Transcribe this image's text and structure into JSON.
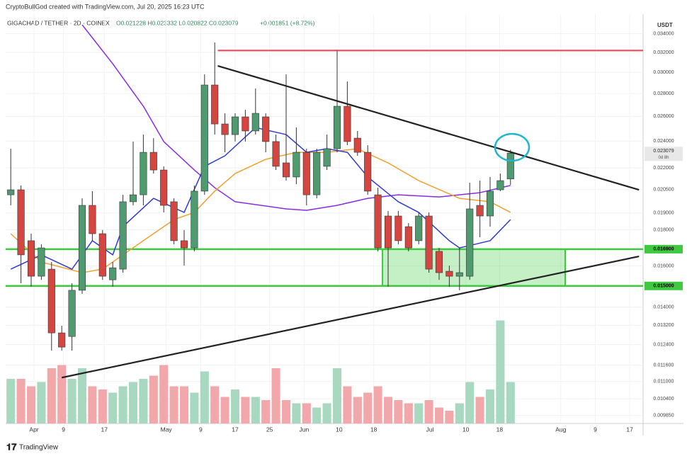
{
  "header": {
    "credit": "CryptoBullGod created with TradingView.com, Jul 20, 2025 16:23 UTC",
    "symbol": "GIGACHAD / TETHER · 2D · COINEX",
    "ohlc": "O0.021228 H0.023332 L0.020822 C0.023079",
    "change": "+0.001851 (+8.72%)"
  },
  "footer": {
    "logo": "TradingView"
  },
  "chart_data": {
    "type": "candlestick",
    "y_axis_label": "USDT",
    "log_scale": true,
    "grid": true,
    "ylim": [
      0.0096,
      0.035
    ],
    "yticks": [
      {
        "value": 0.034,
        "label": "0.034000"
      },
      {
        "value": 0.032,
        "label": "0.032000"
      },
      {
        "value": 0.03,
        "label": "0.030000"
      },
      {
        "value": 0.028,
        "label": "0.028000"
      },
      {
        "value": 0.026,
        "label": "0.026000"
      },
      {
        "value": 0.024,
        "label": "0.024000"
      },
      {
        "value": 0.022,
        "label": "0.022000"
      },
      {
        "value": 0.0205,
        "label": "0.020500"
      },
      {
        "value": 0.019,
        "label": "0.019000"
      },
      {
        "value": 0.018,
        "label": "0.018000"
      },
      {
        "value": 0.016,
        "label": "0.016000"
      },
      {
        "value": 0.014,
        "label": "0.014000"
      },
      {
        "value": 0.0132,
        "label": "0.013200"
      },
      {
        "value": 0.0124,
        "label": "0.012400"
      },
      {
        "value": 0.0116,
        "label": "0.011600"
      },
      {
        "value": 0.011,
        "label": "0.011000"
      },
      {
        "value": 0.0104,
        "label": "0.010400"
      },
      {
        "value": 0.00985,
        "label": "0.009850"
      }
    ],
    "xlim": [
      -0.5,
      62
    ],
    "xticks": [
      {
        "value": 2.28,
        "label": "Apr"
      },
      {
        "value": 5.17,
        "label": "9"
      },
      {
        "value": 9.17,
        "label": "17"
      },
      {
        "value": 15.24,
        "label": "May"
      },
      {
        "value": 18.62,
        "label": "9"
      },
      {
        "value": 22,
        "label": "17"
      },
      {
        "value": 25.38,
        "label": "25"
      },
      {
        "value": 28.76,
        "label": "Jun"
      },
      {
        "value": 32.2,
        "label": "10"
      },
      {
        "value": 35.59,
        "label": "18"
      },
      {
        "value": 41.1,
        "label": "Jul"
      },
      {
        "value": 44.62,
        "label": "10"
      },
      {
        "value": 47.93,
        "label": "18"
      },
      {
        "value": 53.93,
        "label": "Aug"
      },
      {
        "value": 57.31,
        "label": "9"
      },
      {
        "value": 60.69,
        "label": "17"
      }
    ],
    "up_color": "#4f9a6e",
    "down_color": "#d4463f",
    "volume_up_color": "#a8d8c0",
    "volume_down_color": "#f2a7aa",
    "open": [
      0.02016,
      0.02049,
      0.01737,
      0.01548,
      0.01584,
      0.01288,
      0.01273,
      0.01479,
      0.01948,
      0.01777,
      0.0153,
      0.01584,
      0.01971,
      0.02016,
      0.02314,
      0.02185,
      0.01971,
      0.01737,
      0.01697,
      0.0204,
      0.02879,
      0.02537,
      0.02451,
      0.02596,
      0.0248,
      0.02596,
      0.02396,
      0.02236,
      0.02136,
      0.02314,
      0.02016,
      0.02211,
      0.02341,
      0.02687,
      0.02423,
      0.02314,
      0.02016,
      0.01882,
      0.01882,
      0.01818,
      0.01737,
      0.01882,
      0.01678,
      0.01573,
      0.01548,
      0.01548,
      0.01948,
      0.01882,
      0.02049,
      0.021228
    ],
    "high": [
      0.02341,
      0.02078,
      0.01777,
      0.01717,
      0.01621,
      0.01318,
      0.01513,
      0.01993,
      0.0204,
      0.01798,
      0.01621,
      0.02016,
      0.02396,
      0.02451,
      0.02423,
      0.02211,
      0.01993,
      0.01798,
      0.02078,
      0.0298,
      0.03305,
      0.02626,
      0.02626,
      0.02657,
      0.02846,
      0.02626,
      0.02451,
      0.0298,
      0.02508,
      0.02341,
      0.02341,
      0.02451,
      0.0323,
      0.02912,
      0.0248,
      0.02368,
      0.02063,
      0.01913,
      0.01913,
      0.01839,
      0.01904,
      0.01904,
      0.01697,
      0.01602,
      0.01697,
      0.02097,
      0.02111,
      0.02136,
      0.0216,
      0.023332
    ],
    "low": [
      0.01948,
      0.01513,
      0.01496,
      0.0153,
      0.01216,
      0.01216,
      0.01216,
      0.01462,
      0.01737,
      0.0153,
      0.01496,
      0.01566,
      0.01948,
      0.01948,
      0.0216,
      0.01904,
      0.01717,
      0.01602,
      0.01678,
      0.02016,
      0.02451,
      0.02314,
      0.02396,
      0.02396,
      0.02451,
      0.02314,
      0.02185,
      0.02111,
      0.02087,
      0.01948,
      0.01993,
      0.02185,
      0.02314,
      0.02368,
      0.02288,
      0.02016,
      0.01678,
      0.01496,
      0.01717,
      0.01678,
      0.01717,
      0.01566,
      0.0153,
      0.01496,
      0.01479,
      0.0153,
      0.01757,
      0.01818,
      0.0204,
      0.020822
    ],
    "close": [
      0.02049,
      0.01659,
      0.01548,
      0.01697,
      0.01288,
      0.0123,
      0.01479,
      0.01948,
      0.01777,
      0.01548,
      0.01591,
      0.01971,
      0.02016,
      0.02314,
      0.02185,
      0.01948,
      0.01737,
      0.01697,
      0.0204,
      0.02879,
      0.02537,
      0.02451,
      0.02596,
      0.0248,
      0.02626,
      0.02396,
      0.02211,
      0.02136,
      0.02314,
      0.02016,
      0.02314,
      0.02341,
      0.02687,
      0.02396,
      0.02314,
      0.0204,
      0.01697,
      0.01697,
      0.01737,
      0.01697,
      0.01882,
      0.01584,
      0.01566,
      0.01548,
      0.01566,
      0.01926,
      0.01882,
      0.0204,
      0.02111,
      0.023079
    ],
    "vlim": [
      0,
      100
    ],
    "volume": [
      42,
      42,
      35,
      39,
      52,
      55,
      42,
      52,
      35,
      32,
      29,
      35,
      39,
      42,
      45,
      55,
      35,
      35,
      29,
      49,
      35,
      25,
      32,
      25,
      25,
      22,
      52,
      22,
      19,
      19,
      15,
      19,
      52,
      35,
      25,
      29,
      35,
      25,
      22,
      19,
      19,
      22,
      15,
      12,
      19,
      39,
      25,
      32,
      97,
      39
    ],
    "moving_averages": [
      {
        "color": "#8a2be2",
        "x": [
          7,
          10,
          13,
          15,
          18,
          20,
          22,
          27,
          29,
          32,
          35,
          38,
          42,
          46,
          49
        ],
        "values": [
          0.035,
          0.03084,
          0.02687,
          0.02396,
          0.02185,
          0.02063,
          0.01971,
          0.01926,
          0.01917,
          0.01948,
          0.01993,
          0.02016,
          0.02002,
          0.0203,
          0.02078
        ]
      },
      {
        "color": "#f0a030",
        "x": [
          0,
          3,
          7,
          9,
          13,
          16,
          18,
          20,
          22,
          25,
          28,
          31,
          34,
          37,
          40,
          44,
          47,
          49
        ],
        "values": [
          0.01777,
          0.01621,
          0.01566,
          0.01584,
          0.01737,
          0.0186,
          0.01904,
          0.0204,
          0.0216,
          0.02262,
          0.02314,
          0.02314,
          0.02341,
          0.02236,
          0.02111,
          0.01993,
          0.01971,
          0.01904
        ]
      },
      {
        "color": "#2d3bd1",
        "x": [
          0,
          3,
          6,
          8,
          10,
          11,
          14,
          17,
          19,
          21,
          24,
          27,
          29,
          31,
          33,
          35,
          38,
          40,
          43,
          44,
          47,
          49
        ],
        "values": [
          0.01584,
          0.01659,
          0.01584,
          0.01737,
          0.01659,
          0.01818,
          0.01993,
          0.01904,
          0.02211,
          0.02288,
          0.02508,
          0.02451,
          0.02314,
          0.02341,
          0.02314,
          0.02136,
          0.01971,
          0.01904,
          0.01737,
          0.01697,
          0.01737,
          0.0186
        ]
      }
    ],
    "trendlines": [
      {
        "color": "#222222",
        "x": [
          20.3,
          61.6
        ],
        "values": [
          0.03063,
          0.02049
        ]
      },
      {
        "color": "#222222",
        "x": [
          5,
          61.6
        ],
        "values": [
          0.01114,
          0.01651
        ]
      },
      {
        "color": "#e0505a",
        "x": [
          20.3,
          62
        ],
        "values": [
          0.0322,
          0.0322
        ]
      }
    ],
    "zone": {
      "color": "#3ec93e",
      "x": [
        36.44,
        54.36
      ],
      "values": [
        0.015,
        0.0169
      ]
    },
    "levels": [
      {
        "value": 0.0169,
        "label": "0.016900",
        "color": "#3ec93e"
      },
      {
        "value": 0.015,
        "label": "0.015000",
        "color": "#3ec93e"
      }
    ],
    "last_price": {
      "value": 0.023079,
      "label": "0.023079",
      "countdown": "0d 8h"
    }
  }
}
